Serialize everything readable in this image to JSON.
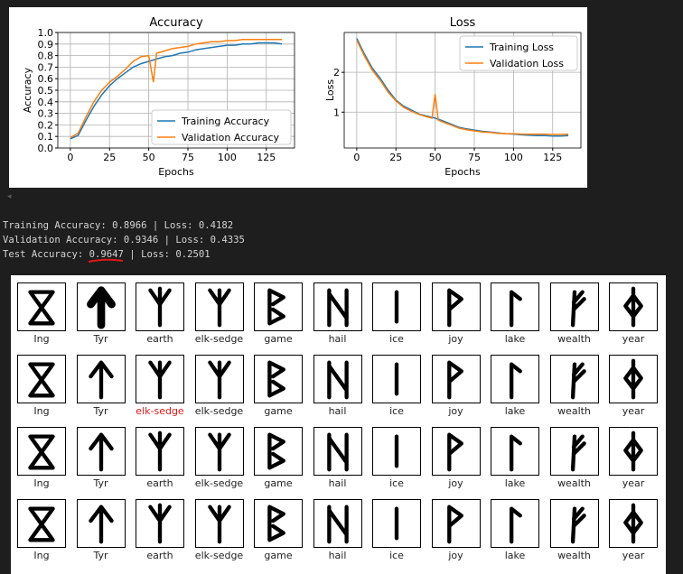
{
  "accuracy_chart": {
    "title": "Accuracy",
    "xlabel": "Epochs",
    "ylabel": "Accuracy",
    "legend": [
      "Training Accuracy",
      "Validation Accuracy"
    ]
  },
  "loss_chart": {
    "title": "Loss",
    "xlabel": "Epochs",
    "ylabel": "Loss",
    "legend": [
      "Training Loss",
      "Validation Loss"
    ]
  },
  "colors": {
    "training": "#1f77b4",
    "validation": "#ff7f0e",
    "wrong_label": "#e01818"
  },
  "chart_data": [
    {
      "type": "line",
      "title": "Accuracy",
      "xlabel": "Epochs",
      "ylabel": "Accuracy",
      "xlim": [
        -8,
        143
      ],
      "ylim": [
        0,
        1.0
      ],
      "xticks": [
        0,
        25,
        50,
        75,
        100,
        125
      ],
      "yticks": [
        0.0,
        0.1,
        0.2,
        0.3,
        0.4,
        0.5,
        0.6,
        0.7,
        0.8,
        0.9,
        1.0
      ],
      "grid": true,
      "legend_position": "lower-right",
      "series": [
        {
          "name": "Training Accuracy",
          "x": [
            0,
            5,
            10,
            15,
            20,
            25,
            30,
            35,
            40,
            45,
            50,
            55,
            60,
            65,
            70,
            75,
            80,
            85,
            90,
            95,
            100,
            105,
            110,
            115,
            120,
            125,
            130,
            135
          ],
          "y": [
            0.08,
            0.11,
            0.24,
            0.36,
            0.46,
            0.54,
            0.6,
            0.65,
            0.7,
            0.73,
            0.75,
            0.77,
            0.79,
            0.8,
            0.82,
            0.83,
            0.85,
            0.86,
            0.87,
            0.88,
            0.89,
            0.89,
            0.9,
            0.9,
            0.91,
            0.91,
            0.91,
            0.9
          ]
        },
        {
          "name": "Validation Accuracy",
          "x": [
            0,
            5,
            10,
            15,
            20,
            25,
            30,
            35,
            40,
            45,
            50,
            53,
            55,
            60,
            65,
            70,
            75,
            80,
            85,
            90,
            95,
            100,
            105,
            110,
            115,
            120,
            125,
            130,
            135
          ],
          "y": [
            0.09,
            0.13,
            0.27,
            0.4,
            0.5,
            0.57,
            0.62,
            0.68,
            0.75,
            0.79,
            0.8,
            0.57,
            0.82,
            0.84,
            0.86,
            0.87,
            0.88,
            0.9,
            0.91,
            0.92,
            0.92,
            0.93,
            0.93,
            0.94,
            0.94,
            0.94,
            0.94,
            0.94,
            0.94
          ]
        }
      ]
    },
    {
      "type": "line",
      "title": "Loss",
      "xlabel": "Epochs",
      "ylabel": "Loss",
      "xlim": [
        -8,
        143
      ],
      "ylim": [
        0.1,
        3.0
      ],
      "xticks": [
        0,
        25,
        50,
        75,
        100,
        125
      ],
      "yticks": [
        1,
        2
      ],
      "grid": true,
      "legend_position": "top-right",
      "series": [
        {
          "name": "Training Loss",
          "x": [
            0,
            5,
            10,
            15,
            20,
            25,
            30,
            35,
            40,
            45,
            50,
            55,
            60,
            65,
            70,
            75,
            80,
            85,
            90,
            95,
            100,
            105,
            110,
            115,
            120,
            125,
            130,
            135
          ],
          "y": [
            2.85,
            2.45,
            2.1,
            1.85,
            1.55,
            1.3,
            1.15,
            1.05,
            0.95,
            0.9,
            0.85,
            0.78,
            0.7,
            0.62,
            0.58,
            0.55,
            0.52,
            0.5,
            0.48,
            0.46,
            0.45,
            0.43,
            0.42,
            0.41,
            0.41,
            0.4,
            0.4,
            0.41
          ]
        },
        {
          "name": "Validation Loss",
          "x": [
            0,
            5,
            10,
            15,
            20,
            25,
            30,
            35,
            40,
            45,
            48,
            50,
            52,
            55,
            60,
            65,
            70,
            75,
            80,
            85,
            90,
            95,
            100,
            105,
            110,
            115,
            120,
            125,
            130,
            135
          ],
          "y": [
            2.8,
            2.4,
            2.05,
            1.8,
            1.5,
            1.28,
            1.12,
            1.02,
            0.94,
            0.88,
            0.85,
            1.45,
            0.8,
            0.75,
            0.68,
            0.6,
            0.56,
            0.53,
            0.5,
            0.49,
            0.47,
            0.46,
            0.46,
            0.45,
            0.45,
            0.45,
            0.45,
            0.44,
            0.44,
            0.45
          ]
        }
      ]
    }
  ],
  "console": {
    "line1": "Training Accuracy: 0.8966 | Loss: 0.4182",
    "line2": "Validation Accuracy: 0.9346 | Loss: 0.4335",
    "line3_prefix": "Test Accuracy: ",
    "line3_value": "0.9647",
    "line3_suffix": " | Loss: 0.2501"
  },
  "sample_grid": {
    "rows": [
      [
        "Ing",
        "Tyr",
        "earth",
        "elk-sedge",
        "game",
        "hail",
        "ice",
        "joy",
        "lake",
        "wealth",
        "year"
      ],
      [
        "Ing",
        "Tyr",
        "elk-sedge",
        "elk-sedge",
        "game",
        "hail",
        "ice",
        "joy",
        "lake",
        "wealth",
        "year"
      ],
      [
        "Ing",
        "Tyr",
        "earth",
        "elk-sedge",
        "game",
        "hail",
        "ice",
        "joy",
        "lake",
        "wealth",
        "year"
      ],
      [
        "Ing",
        "Tyr",
        "earth",
        "elk-sedge",
        "game",
        "hail",
        "ice",
        "joy",
        "lake",
        "wealth",
        "year"
      ]
    ],
    "wrong": [
      [
        1,
        2
      ]
    ]
  }
}
